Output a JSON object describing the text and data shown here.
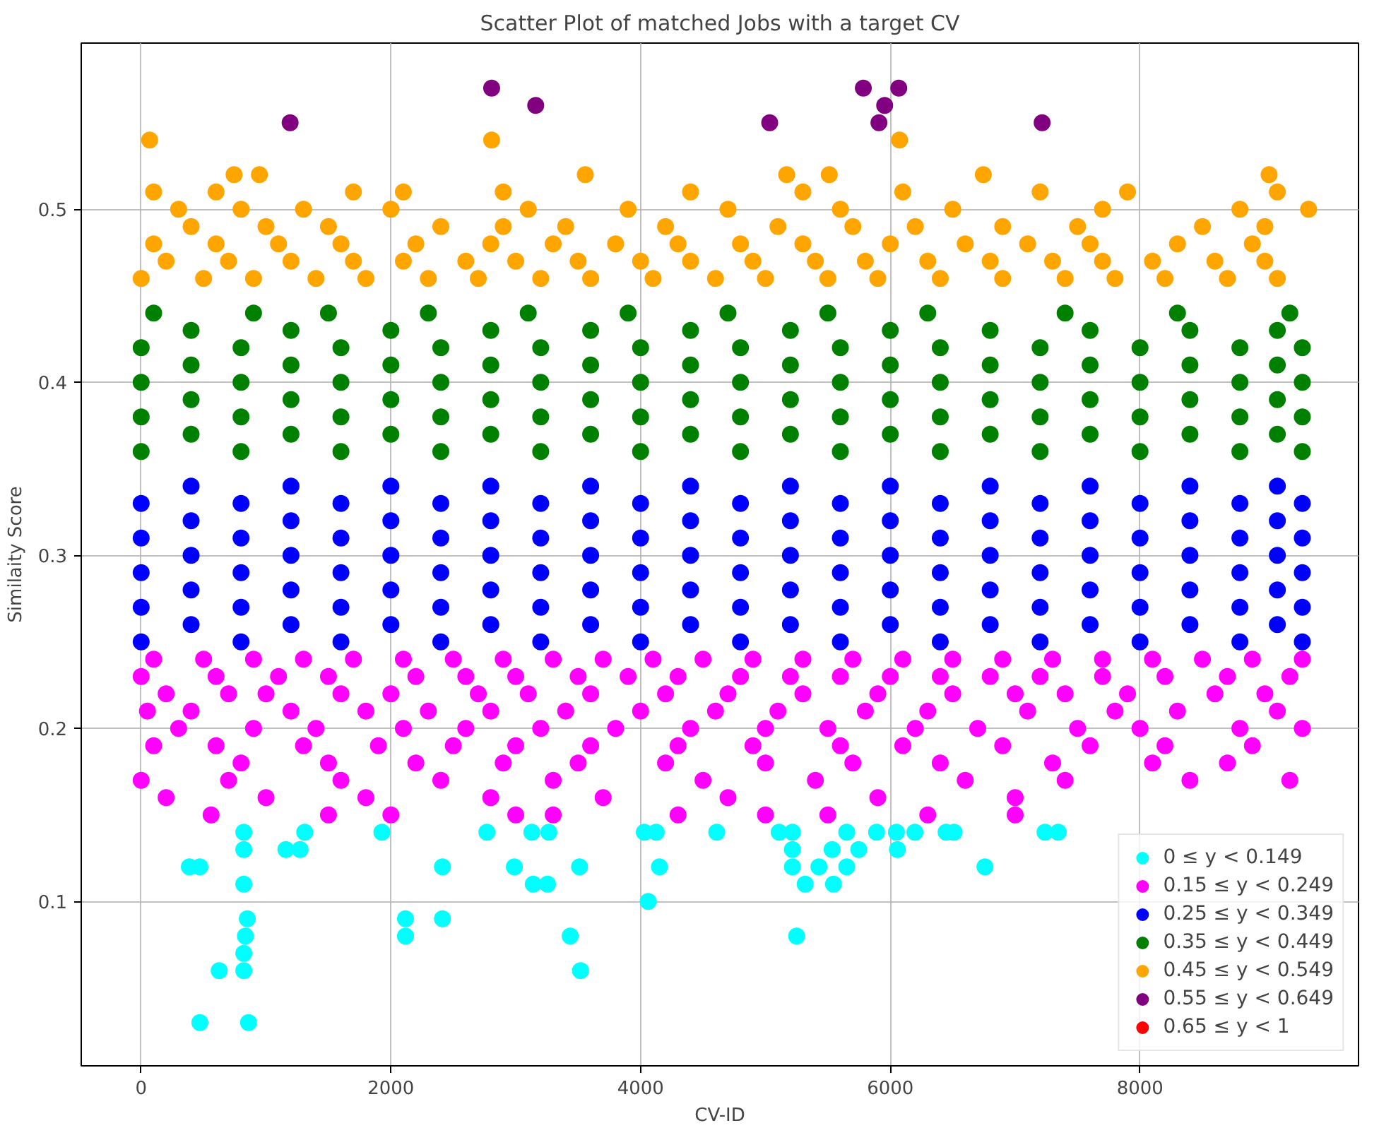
{
  "chart_data": {
    "type": "scatter",
    "title": "Scatter Plot of matched Jobs with a target CV",
    "xlabel": "CV-ID",
    "ylabel": "Similaity Score",
    "xlim": [
      -480,
      9750
    ],
    "ylim": [
      0.005,
      0.596
    ],
    "xticks": [
      0,
      2000,
      4000,
      6000,
      8000
    ],
    "yticks": [
      0.1,
      0.2,
      0.3,
      0.4,
      0.5
    ],
    "grid": true,
    "legend": "bottom right",
    "marker": "circle",
    "series": [
      {
        "name": "0 ≤ y < 0.149",
        "color": "#00ffff",
        "x": [
          822,
          822,
          386,
          470,
          822,
          850,
          835,
          822,
          625,
          822,
          470,
          860,
          1310,
          1159,
          1273,
          1928,
          2117,
          2117,
          2413,
          2413,
          2769,
          2989,
          3129,
          3265,
          3140,
          3254,
          3511,
          3436,
          3519,
          4030,
          4125,
          4151,
          4061,
          4610,
          5110,
          5216,
          5216,
          5534,
          5747,
          5216,
          5428,
          5651,
          5318,
          5545,
          5250,
          5651,
          5890,
          6049,
          6197,
          6057,
          6447,
          6511,
          6758,
          7239,
          7345
        ],
        "values": [
          0.14,
          0.13,
          0.12,
          0.12,
          0.11,
          0.09,
          0.08,
          0.07,
          0.06,
          0.06,
          0.03,
          0.03,
          0.14,
          0.13,
          0.13,
          0.14,
          0.09,
          0.08,
          0.12,
          0.09,
          0.14,
          0.12,
          0.14,
          0.14,
          0.11,
          0.11,
          0.12,
          0.08,
          0.06,
          0.14,
          0.14,
          0.12,
          0.1,
          0.14,
          0.14,
          0.14,
          0.13,
          0.13,
          0.13,
          0.12,
          0.12,
          0.12,
          0.11,
          0.11,
          0.08,
          0.14,
          0.14,
          0.14,
          0.14,
          0.13,
          0.14,
          0.14,
          0.12,
          0.14,
          0.14
        ]
      },
      {
        "name": "0.15 ≤ y < 0.249",
        "color": "#ff00ff",
        "x": [
          100,
          500,
          900,
          1300,
          1700,
          2100,
          2500,
          2900,
          3300,
          3700,
          4100,
          4500,
          4900,
          5300,
          5700,
          6100,
          6500,
          6900,
          7300,
          7700,
          8100,
          8500,
          8900,
          9300,
          0,
          600,
          1100,
          1500,
          2200,
          2600,
          3000,
          3500,
          3900,
          4300,
          4800,
          5200,
          5600,
          6000,
          6400,
          6800,
          7200,
          7700,
          8200,
          8700,
          9200,
          200,
          700,
          1000,
          1600,
          2000,
          2700,
          3100,
          3600,
          4200,
          4700,
          5300,
          5900,
          6500,
          7000,
          7400,
          7900,
          8600,
          9000,
          50,
          400,
          1200,
          1800,
          2300,
          2800,
          3400,
          4000,
          4600,
          5100,
          5800,
          6300,
          7100,
          7800,
          8300,
          9100,
          300,
          900,
          1400,
          2100,
          2600,
          3200,
          3800,
          4400,
          5000,
          5500,
          6200,
          6700,
          7500,
          8000,
          8800,
          9300,
          100,
          600,
          1300,
          1900,
          2500,
          3000,
          3600,
          4300,
          4900,
          5600,
          6100,
          6900,
          7600,
          8200,
          8900,
          800,
          1500,
          2200,
          2900,
          3500,
          4200,
          5000,
          5700,
          6400,
          7300,
          8100,
          8700,
          0,
          700,
          1600,
          2400,
          3300,
          4500,
          5400,
          6600,
          7400,
          8400,
          9200,
          200,
          1000,
          1800,
          2800,
          3700,
          4700,
          5900,
          7000,
          560,
          1500,
          2000,
          3000,
          3300,
          4300,
          5000,
          5500,
          6300,
          7000
        ],
        "values": [
          0.24,
          0.24,
          0.24,
          0.24,
          0.24,
          0.24,
          0.24,
          0.24,
          0.24,
          0.24,
          0.24,
          0.24,
          0.24,
          0.24,
          0.24,
          0.24,
          0.24,
          0.24,
          0.24,
          0.24,
          0.24,
          0.24,
          0.24,
          0.24,
          0.23,
          0.23,
          0.23,
          0.23,
          0.23,
          0.23,
          0.23,
          0.23,
          0.23,
          0.23,
          0.23,
          0.23,
          0.23,
          0.23,
          0.23,
          0.23,
          0.23,
          0.23,
          0.23,
          0.23,
          0.23,
          0.22,
          0.22,
          0.22,
          0.22,
          0.22,
          0.22,
          0.22,
          0.22,
          0.22,
          0.22,
          0.22,
          0.22,
          0.22,
          0.22,
          0.22,
          0.22,
          0.22,
          0.22,
          0.21,
          0.21,
          0.21,
          0.21,
          0.21,
          0.21,
          0.21,
          0.21,
          0.21,
          0.21,
          0.21,
          0.21,
          0.21,
          0.21,
          0.21,
          0.21,
          0.2,
          0.2,
          0.2,
          0.2,
          0.2,
          0.2,
          0.2,
          0.2,
          0.2,
          0.2,
          0.2,
          0.2,
          0.2,
          0.2,
          0.2,
          0.2,
          0.19,
          0.19,
          0.19,
          0.19,
          0.19,
          0.19,
          0.19,
          0.19,
          0.19,
          0.19,
          0.19,
          0.19,
          0.19,
          0.19,
          0.19,
          0.18,
          0.18,
          0.18,
          0.18,
          0.18,
          0.18,
          0.18,
          0.18,
          0.18,
          0.18,
          0.18,
          0.18,
          0.17,
          0.17,
          0.17,
          0.17,
          0.17,
          0.17,
          0.17,
          0.17,
          0.17,
          0.17,
          0.17,
          0.16,
          0.16,
          0.16,
          0.16,
          0.16,
          0.16,
          0.16,
          0.16,
          0.15,
          0.15,
          0.15,
          0.15,
          0.15,
          0.15,
          0.15,
          0.15,
          0.15,
          0.15
        ]
      },
      {
        "name": "0.25 ≤ y < 0.349",
        "color": "#0000ff",
        "x": [
          0,
          800,
          1600,
          2400,
          3200,
          4000,
          4800,
          5600,
          6400,
          7200,
          8000,
          8800,
          9300,
          400,
          1200,
          2000,
          2800,
          3600,
          4400,
          5200,
          6000,
          6800,
          7600,
          8400,
          9100,
          0,
          800,
          1600,
          2400,
          3200,
          4000,
          4800,
          5600,
          6400,
          7200,
          8000,
          8800,
          9300,
          400,
          1200,
          2000,
          2800,
          3600,
          4400,
          5200,
          6000,
          6800,
          7600,
          8400,
          9100,
          0,
          800,
          1600,
          2400,
          3200,
          4000,
          4800,
          5600,
          6400,
          7200,
          8000,
          8800,
          9300,
          400,
          1200,
          2000,
          2800,
          3600,
          4400,
          5200,
          6000,
          6800,
          7600,
          8400,
          9100,
          0,
          800,
          1600,
          2400,
          3200,
          4000,
          4800,
          5600,
          6400,
          7200,
          8000,
          8800,
          9300,
          400,
          1200,
          2000,
          2800,
          3600,
          4400,
          5200,
          6000,
          6800,
          7600,
          8400,
          9100,
          0,
          800,
          1600,
          2400,
          3200,
          4000,
          4800,
          5600,
          6400,
          7200,
          8000,
          8800,
          9300,
          400,
          1200,
          2000,
          2800,
          3600,
          4400,
          5200,
          6000,
          6800,
          7600,
          8400,
          9100
        ],
        "values": [
          0.25,
          0.25,
          0.25,
          0.25,
          0.25,
          0.25,
          0.25,
          0.25,
          0.25,
          0.25,
          0.25,
          0.25,
          0.25,
          0.26,
          0.26,
          0.26,
          0.26,
          0.26,
          0.26,
          0.26,
          0.26,
          0.26,
          0.26,
          0.26,
          0.26,
          0.27,
          0.27,
          0.27,
          0.27,
          0.27,
          0.27,
          0.27,
          0.27,
          0.27,
          0.27,
          0.27,
          0.27,
          0.27,
          0.28,
          0.28,
          0.28,
          0.28,
          0.28,
          0.28,
          0.28,
          0.28,
          0.28,
          0.28,
          0.28,
          0.28,
          0.29,
          0.29,
          0.29,
          0.29,
          0.29,
          0.29,
          0.29,
          0.29,
          0.29,
          0.29,
          0.29,
          0.29,
          0.29,
          0.3,
          0.3,
          0.3,
          0.3,
          0.3,
          0.3,
          0.3,
          0.3,
          0.3,
          0.3,
          0.3,
          0.3,
          0.31,
          0.31,
          0.31,
          0.31,
          0.31,
          0.31,
          0.31,
          0.31,
          0.31,
          0.31,
          0.31,
          0.31,
          0.31,
          0.32,
          0.32,
          0.32,
          0.32,
          0.32,
          0.32,
          0.32,
          0.32,
          0.32,
          0.32,
          0.32,
          0.32,
          0.33,
          0.33,
          0.33,
          0.33,
          0.33,
          0.33,
          0.33,
          0.33,
          0.33,
          0.33,
          0.33,
          0.33,
          0.33,
          0.34,
          0.34,
          0.34,
          0.34,
          0.34,
          0.34,
          0.34,
          0.34,
          0.34,
          0.34,
          0.34,
          0.34
        ]
      },
      {
        "name": "0.35 ≤ y < 0.449",
        "color": "#008000",
        "x": [
          0,
          800,
          1600,
          2400,
          3200,
          4000,
          4800,
          5600,
          6400,
          7200,
          8000,
          8800,
          9300,
          400,
          1200,
          2000,
          2800,
          3600,
          4400,
          5200,
          6000,
          6800,
          7600,
          8400,
          9100,
          0,
          800,
          1600,
          2400,
          3200,
          4000,
          4800,
          5600,
          6400,
          7200,
          8000,
          8800,
          9300,
          400,
          1200,
          2000,
          2800,
          3600,
          4400,
          5200,
          6000,
          6800,
          7600,
          8400,
          9100,
          0,
          800,
          1600,
          2400,
          3200,
          4000,
          4800,
          5600,
          6400,
          7200,
          8000,
          8800,
          9300,
          400,
          1200,
          2000,
          2800,
          3600,
          4400,
          5200,
          6000,
          6800,
          7600,
          8400,
          9100,
          0,
          800,
          1600,
          2400,
          3200,
          4000,
          4800,
          5600,
          6400,
          7200,
          8000,
          8800,
          9300,
          400,
          1200,
          2000,
          2800,
          3600,
          4400,
          5200,
          6000,
          6800,
          7600,
          8400,
          9100,
          100,
          900,
          1500,
          2300,
          3100,
          3900,
          4700,
          5500,
          6300,
          7400,
          8300,
          9200
        ],
        "values": [
          0.36,
          0.36,
          0.36,
          0.36,
          0.36,
          0.36,
          0.36,
          0.36,
          0.36,
          0.36,
          0.36,
          0.36,
          0.36,
          0.37,
          0.37,
          0.37,
          0.37,
          0.37,
          0.37,
          0.37,
          0.37,
          0.37,
          0.37,
          0.37,
          0.37,
          0.38,
          0.38,
          0.38,
          0.38,
          0.38,
          0.38,
          0.38,
          0.38,
          0.38,
          0.38,
          0.38,
          0.38,
          0.38,
          0.39,
          0.39,
          0.39,
          0.39,
          0.39,
          0.39,
          0.39,
          0.39,
          0.39,
          0.39,
          0.39,
          0.39,
          0.4,
          0.4,
          0.4,
          0.4,
          0.4,
          0.4,
          0.4,
          0.4,
          0.4,
          0.4,
          0.4,
          0.4,
          0.4,
          0.41,
          0.41,
          0.41,
          0.41,
          0.41,
          0.41,
          0.41,
          0.41,
          0.41,
          0.41,
          0.41,
          0.41,
          0.42,
          0.42,
          0.42,
          0.42,
          0.42,
          0.42,
          0.42,
          0.42,
          0.42,
          0.42,
          0.42,
          0.42,
          0.42,
          0.43,
          0.43,
          0.43,
          0.43,
          0.43,
          0.43,
          0.43,
          0.43,
          0.43,
          0.43,
          0.43,
          0.43,
          0.44,
          0.44,
          0.44,
          0.44,
          0.44,
          0.44,
          0.44,
          0.44,
          0.44,
          0.44,
          0.44,
          0.44
        ]
      },
      {
        "name": "0.45 ≤ y < 0.549",
        "color": "#ffa500",
        "x": [
          0,
          500,
          900,
          1400,
          1800,
          2300,
          2700,
          3200,
          3600,
          4100,
          4600,
          5000,
          5500,
          5900,
          6400,
          6900,
          7400,
          7800,
          8200,
          8700,
          9100,
          200,
          700,
          1200,
          1700,
          2100,
          2600,
          3000,
          3500,
          4000,
          4400,
          4900,
          5400,
          5800,
          6300,
          6800,
          7300,
          7700,
          8100,
          8600,
          9000,
          100,
          600,
          1100,
          1600,
          2200,
          2800,
          3300,
          3800,
          4300,
          4800,
          5300,
          6000,
          6600,
          7100,
          7600,
          8300,
          8900,
          400,
          1000,
          1500,
          2400,
          2900,
          3400,
          4200,
          5100,
          5700,
          6200,
          6900,
          7500,
          8500,
          9000,
          9350,
          300,
          800,
          1300,
          2000,
          3100,
          3900,
          4700,
          5600,
          6500,
          7700,
          8800,
          100,
          600,
          1700,
          2100,
          2900,
          4400,
          5300,
          6100,
          7200,
          7900,
          9100,
          744,
          947,
          3557,
          5170,
          5511,
          6745,
          9034,
          68,
          2807,
          6074
        ],
        "values": [
          0.46,
          0.46,
          0.46,
          0.46,
          0.46,
          0.46,
          0.46,
          0.46,
          0.46,
          0.46,
          0.46,
          0.46,
          0.46,
          0.46,
          0.46,
          0.46,
          0.46,
          0.46,
          0.46,
          0.46,
          0.46,
          0.47,
          0.47,
          0.47,
          0.47,
          0.47,
          0.47,
          0.47,
          0.47,
          0.47,
          0.47,
          0.47,
          0.47,
          0.47,
          0.47,
          0.47,
          0.47,
          0.47,
          0.47,
          0.47,
          0.47,
          0.48,
          0.48,
          0.48,
          0.48,
          0.48,
          0.48,
          0.48,
          0.48,
          0.48,
          0.48,
          0.48,
          0.48,
          0.48,
          0.48,
          0.48,
          0.48,
          0.48,
          0.49,
          0.49,
          0.49,
          0.49,
          0.49,
          0.49,
          0.49,
          0.49,
          0.49,
          0.49,
          0.49,
          0.49,
          0.49,
          0.49,
          0.5,
          0.5,
          0.5,
          0.5,
          0.5,
          0.5,
          0.5,
          0.5,
          0.5,
          0.5,
          0.5,
          0.5,
          0.51,
          0.51,
          0.51,
          0.51,
          0.51,
          0.51,
          0.51,
          0.51,
          0.51,
          0.51,
          0.51,
          0.52,
          0.52,
          0.52,
          0.52,
          0.52,
          0.52,
          0.52,
          0.54,
          0.54,
          0.54
        ]
      },
      {
        "name": "0.55 ≤ y < 0.649",
        "color": "#800080",
        "x": [
          1193,
          2807,
          3160,
          5034,
          5784,
          5955,
          5909,
          6068,
          7216
        ],
        "values": [
          0.55,
          0.57,
          0.56,
          0.55,
          0.57,
          0.56,
          0.55,
          0.57,
          0.55
        ]
      },
      {
        "name": "0.65 ≤ y < 1",
        "color": "#ff0000"
      }
    ]
  }
}
